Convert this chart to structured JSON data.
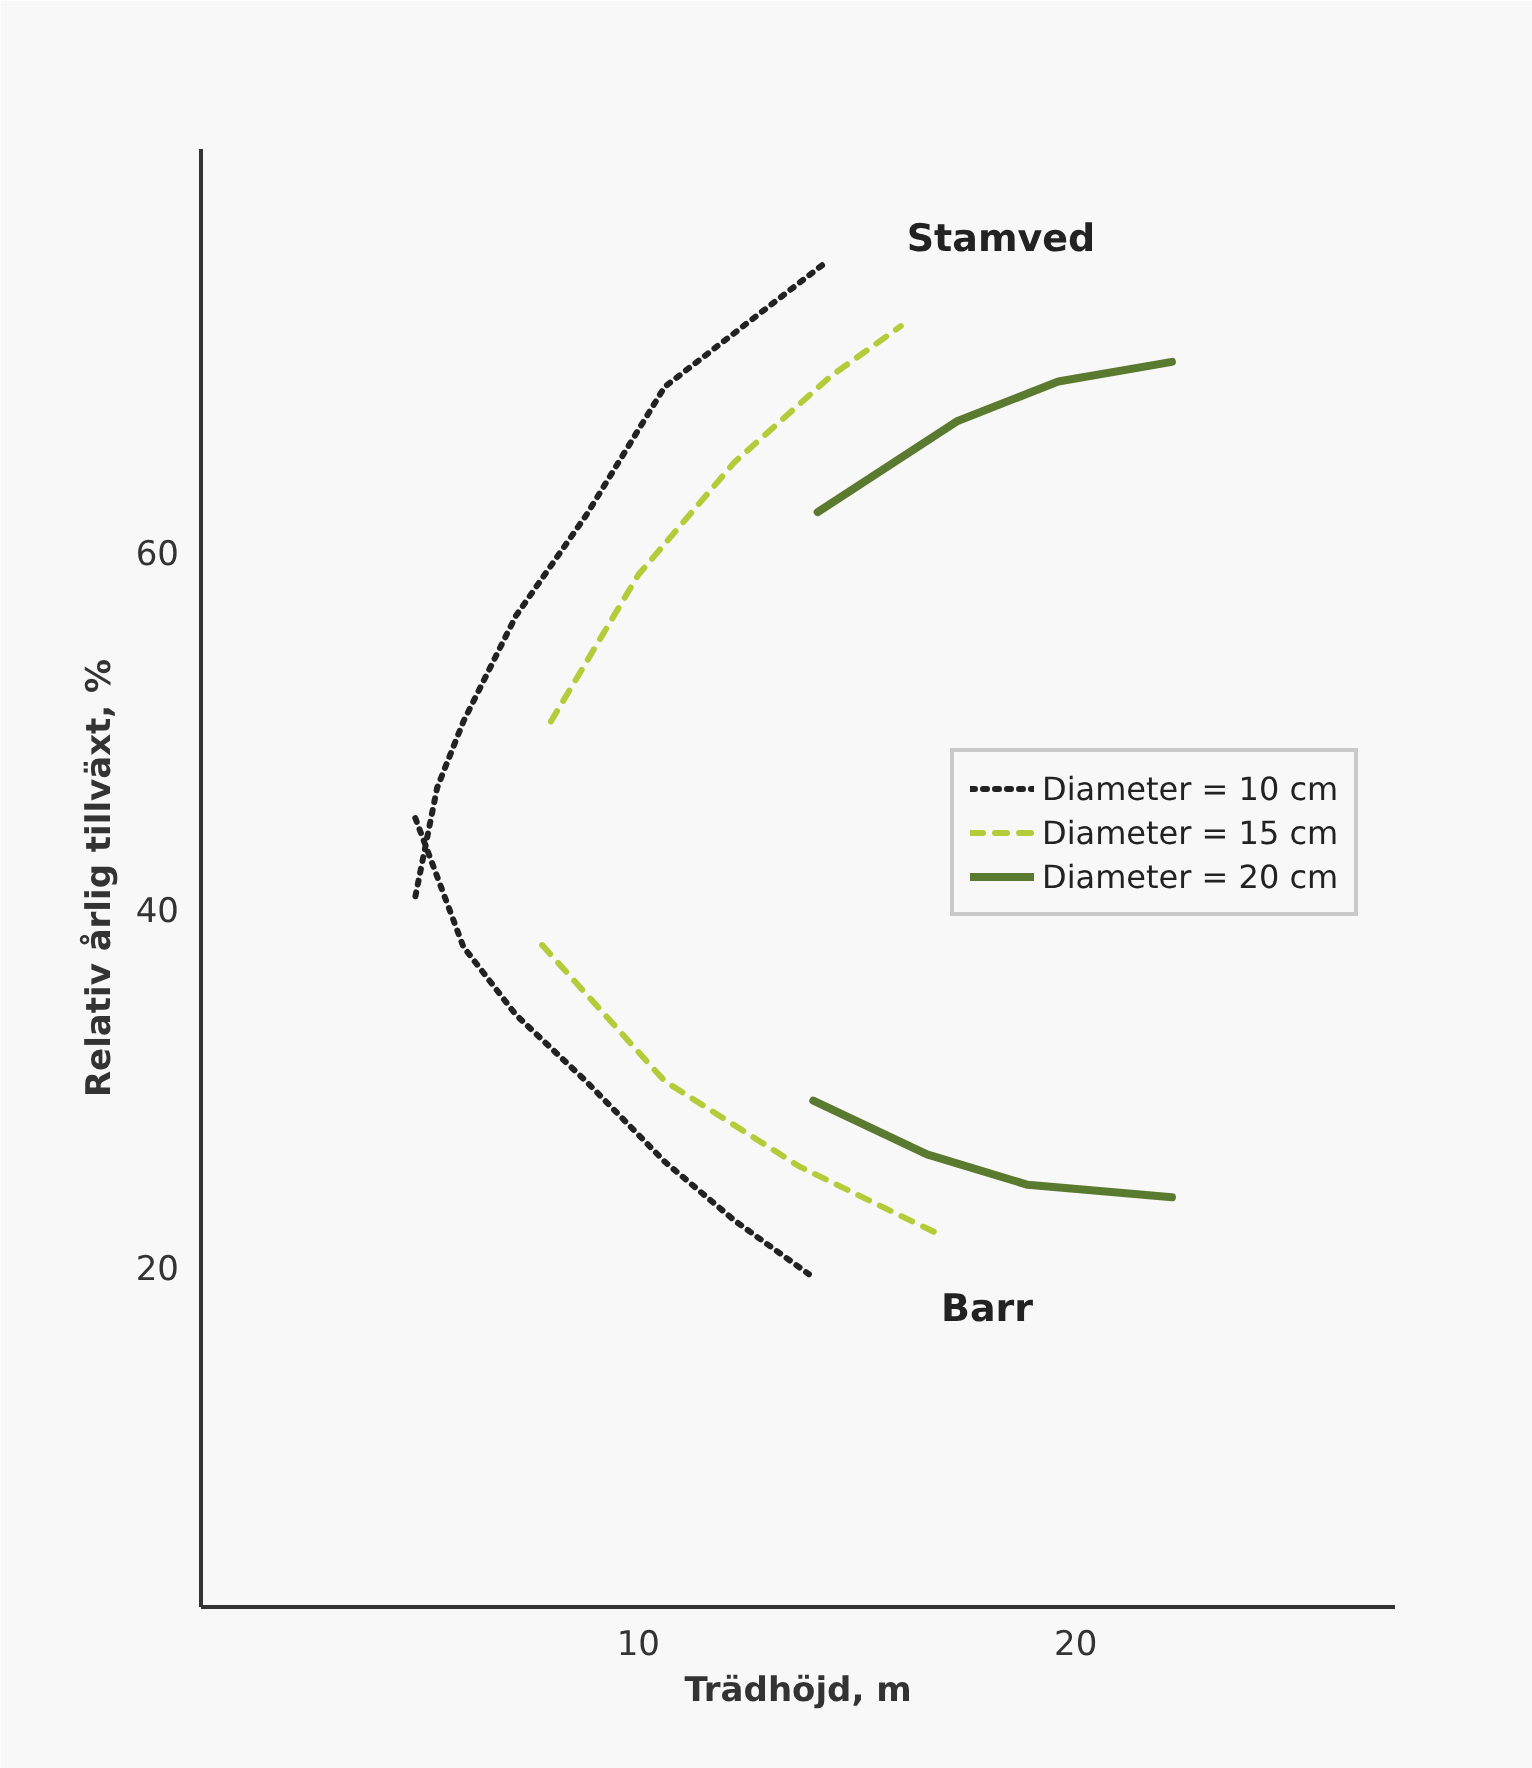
{
  "chart_data": {
    "type": "line",
    "xlabel": "Trädhöjd, m",
    "ylabel": "Relativ årlig tillväxt, %",
    "xlim": [
      0,
      27.3
    ],
    "ylim": [
      1,
      82.5
    ],
    "xticks": [
      10,
      20
    ],
    "yticks": [
      20,
      40,
      60
    ],
    "grid": false,
    "legend": "right",
    "marker": "none",
    "series": [
      {
        "name": "Diameter = 10 cm",
        "color": "#222222",
        "line_style": "dotted",
        "x": [
          14.2,
          10.6,
          8.8,
          7.2,
          6.0,
          5.4,
          4.9,
          null,
          4.9,
          6.0,
          7.2,
          8.8,
          10.6,
          12.2,
          13.9
        ],
        "values": [
          76.0,
          69.2,
          62.0,
          56.4,
          50.5,
          46.8,
          40.7,
          null,
          45.1,
          37.9,
          34.1,
          30.4,
          25.9,
          22.6,
          19.6
        ]
      },
      {
        "name": "Diameter = 15 cm",
        "color": "#b5cc3a",
        "line_style": "dashed",
        "x": [
          8.0,
          10.0,
          12.2,
          14.4,
          16.0,
          null,
          7.8,
          10.6,
          13.7,
          16.9
        ],
        "values": [
          50.5,
          58.7,
          65.0,
          69.8,
          72.6,
          null,
          38.0,
          30.4,
          25.6,
          21.8
        ]
      },
      {
        "name": "Diameter = 20 cm",
        "color": "#5a7a30",
        "line_style": "solid",
        "x": [
          14.1,
          17.3,
          19.6,
          22.2,
          null,
          14.0,
          16.6,
          18.9,
          22.2
        ],
        "values": [
          62.2,
          67.3,
          69.5,
          70.6,
          null,
          29.3,
          26.3,
          24.6,
          23.9
        ]
      }
    ],
    "annotations": [
      "Stamved",
      "Barr"
    ]
  }
}
